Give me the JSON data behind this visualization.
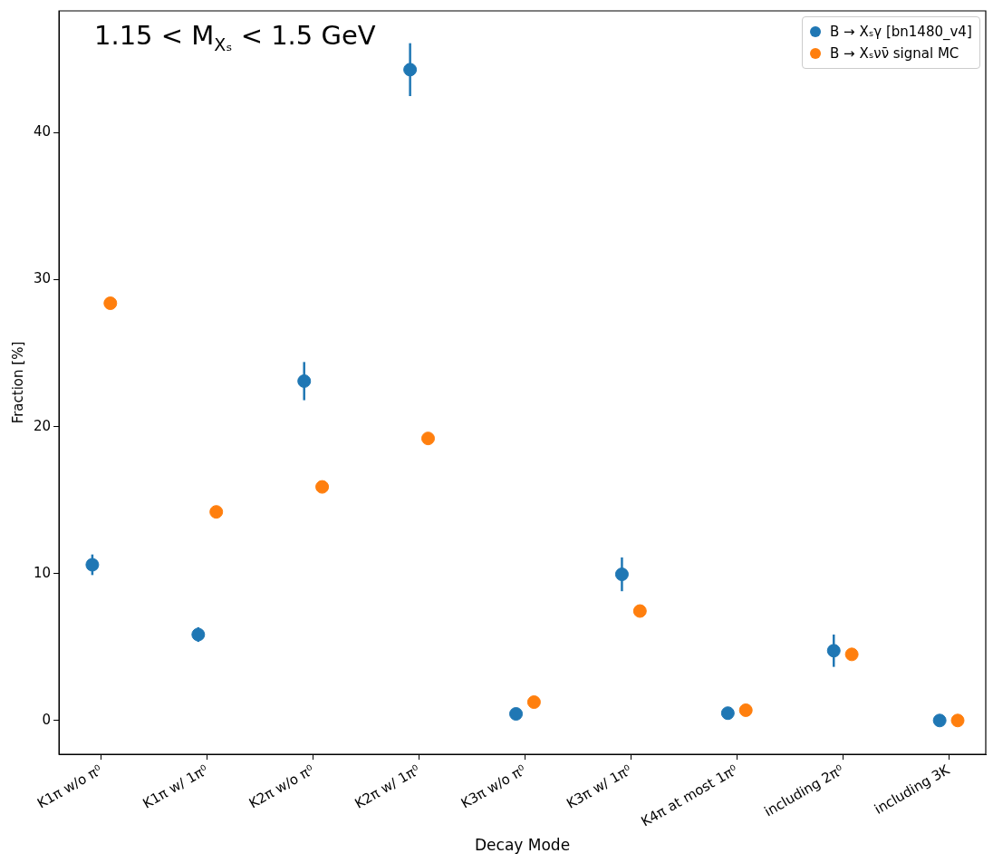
{
  "chart_data": {
    "type": "scatter",
    "title": "1.15 < M$_{Xₛ}$ < 1.5 GeV",
    "xlabel": "Decay Mode",
    "ylabel": "Fraction [%]",
    "categories": [
      "K1π w/o π⁰",
      "K1π w/ 1π⁰",
      "K2π w/o π⁰",
      "K2π w/ 1π⁰",
      "K3π w/o π⁰",
      "K3π w/ 1π⁰",
      "K4π at most 1π⁰",
      "including 2π⁰",
      "including 3K"
    ],
    "series": [
      {
        "name": "B → Xₛγ [bn1480_v4]",
        "color": "#1f77b4",
        "x": [
          "K1π w/o π⁰",
          "K1π w/ 1π⁰",
          "K2π w/o π⁰",
          "K2π w/ 1π⁰",
          "K3π w/o π⁰",
          "K3π w/ 1π⁰",
          "K4π at most 1π⁰",
          "including 2π⁰",
          "including 3K"
        ],
        "values": [
          10.6,
          5.85,
          23.1,
          44.3,
          0.45,
          9.95,
          0.5,
          4.75,
          0
        ],
        "errors": [
          0.7,
          0.5,
          1.3,
          1.8,
          null,
          1.15,
          null,
          1.1,
          null
        ]
      },
      {
        "name": "B → Xₛνν̄ signal MC",
        "color": "#ff7f0e",
        "x": [
          "K1π w/o π⁰",
          "K1π w/ 1π⁰",
          "K2π w/o π⁰",
          "K2π w/ 1π⁰",
          "K3π w/o π⁰",
          "K3π w/ 1π⁰",
          "K4π at most 1π⁰",
          "including 2π⁰",
          "including 3K"
        ],
        "values": [
          28.4,
          14.2,
          15.9,
          19.2,
          1.25,
          7.45,
          0.7,
          4.5,
          0
        ]
      }
    ],
    "ylim": [
      -2.3,
      48.3
    ],
    "yticks": [
      0,
      10,
      20,
      30,
      40
    ],
    "grid": false,
    "legend": "top right",
    "marker": "circle"
  }
}
